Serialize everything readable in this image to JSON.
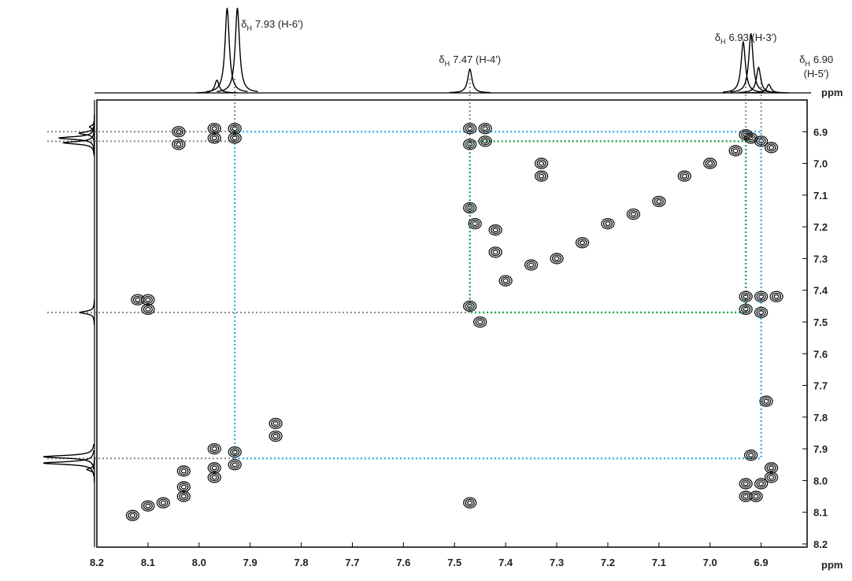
{
  "chart_data": {
    "type": "nmr2d",
    "x_label": "ppm",
    "y_label": "ppm",
    "xlim": [
      8.2,
      6.81
    ],
    "ylim": [
      6.8,
      8.21
    ],
    "xticks": [
      8.2,
      8.1,
      {
        "value": 8.0,
        "label": "8.0"
      },
      7.9,
      7.8,
      7.7,
      7.6,
      7.5,
      7.4,
      7.3,
      7.2,
      7.1,
      {
        "value": 7.0,
        "label": "7.0"
      },
      6.9
    ],
    "yticks": [
      6.9,
      {
        "value": 7.0,
        "label": "7.0"
      },
      7.1,
      7.2,
      7.3,
      7.4,
      7.5,
      7.6,
      7.7,
      7.8,
      7.9,
      {
        "value": 8.0,
        "label": "8.0"
      },
      8.1,
      8.2
    ],
    "contour_color": "#111111",
    "guide_color": "#888888",
    "projection": {
      "x": [
        7.965,
        7.945,
        7.925,
        7.47,
        6.935,
        6.92,
        6.905,
        6.885
      ],
      "height": [
        0.15,
        1.0,
        1.0,
        0.28,
        0.6,
        0.7,
        0.3,
        0.1
      ]
    },
    "cross_peaks": {
      "x": [
        8.04,
        8.04,
        7.97,
        7.97,
        7.93,
        7.93,
        7.47,
        7.47,
        7.44,
        7.44,
        6.93,
        6.9,
        6.88,
        7.33,
        7.33,
        7.47,
        7.46,
        7.42,
        7.42,
        6.93,
        6.93,
        6.9,
        6.87,
        6.9,
        7.47,
        7.45,
        7.4,
        7.35,
        7.3,
        7.25,
        7.2,
        7.15,
        7.1,
        7.05,
        7.0,
        6.95,
        6.92,
        8.1,
        8.1,
        8.12,
        7.85,
        7.85,
        7.93,
        7.93,
        7.97,
        7.97,
        7.97,
        8.03,
        8.03,
        8.03,
        8.07,
        8.1,
        8.13,
        6.89,
        6.92,
        6.88,
        6.93,
        6.9,
        6.88,
        7.47,
        6.93,
        6.91
      ],
      "y": [
        6.9,
        6.94,
        6.89,
        6.92,
        6.89,
        6.92,
        6.89,
        6.94,
        6.89,
        6.93,
        6.91,
        6.93,
        6.95,
        7.0,
        7.04,
        7.14,
        7.19,
        7.21,
        7.28,
        7.42,
        7.46,
        7.42,
        7.42,
        7.47,
        7.45,
        7.5,
        7.37,
        7.32,
        7.3,
        7.25,
        7.19,
        7.16,
        7.12,
        7.04,
        7.0,
        6.96,
        6.92,
        7.43,
        7.46,
        7.43,
        7.82,
        7.86,
        7.91,
        7.95,
        7.9,
        7.96,
        7.99,
        7.97,
        8.02,
        8.05,
        8.07,
        8.08,
        8.11,
        7.75,
        7.92,
        7.96,
        8.01,
        8.01,
        7.99,
        8.07,
        8.05,
        8.05
      ]
    },
    "vertical_guides": [
      {
        "x": 7.93,
        "y_end": 6.9
      },
      {
        "x": 7.47,
        "y_end": 6.93
      },
      {
        "x": 6.93,
        "y_end": 6.93
      },
      {
        "x": 6.9,
        "y_end": 6.9
      }
    ],
    "horizontal_guides": [
      {
        "y": 6.9,
        "x_end": 7.93
      },
      {
        "y": 6.93,
        "x_end": 7.93
      },
      {
        "y": 7.47,
        "x_end": 7.47
      },
      {
        "y": 7.93,
        "x_end": 7.93
      }
    ],
    "boxes": [
      {
        "color": "#3ab4e6",
        "x": [
          7.93,
          6.9
        ],
        "y": [
          6.9,
          7.93
        ]
      },
      {
        "color": "#1fa84a",
        "x": [
          7.47,
          6.93
        ],
        "y": [
          6.93,
          7.47
        ]
      }
    ],
    "annotations": [
      {
        "x": 7.93,
        "symbol": "δ",
        "subscript": "H",
        "lines": [
          "7.93 (H-6′)"
        ]
      },
      {
        "x": 7.47,
        "symbol": "δ",
        "subscript": "H",
        "lines": [
          "7.47 (H-4′)"
        ]
      },
      {
        "x": 6.93,
        "symbol": "δ",
        "subscript": "H",
        "lines": [
          "6.93 (H-3′)"
        ]
      },
      {
        "x": 6.9,
        "symbol": "δ",
        "subscript": "H",
        "lines": [
          "6.90",
          "(H-5′)"
        ]
      }
    ]
  }
}
